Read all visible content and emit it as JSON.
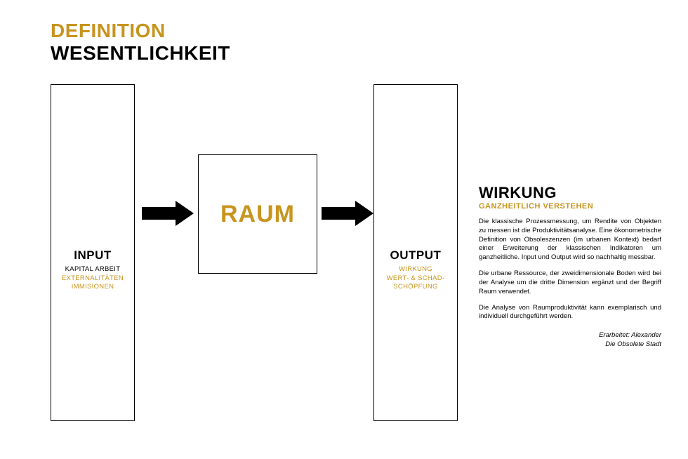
{
  "colors": {
    "gold": "#c7941e",
    "black": "#000000",
    "arrow": "#000000",
    "background": "#ffffff",
    "border": "#000000"
  },
  "header": {
    "line1": "DEFINITION",
    "line2": "WESENTLICHKEIT"
  },
  "diagram": {
    "input": {
      "title": "INPUT",
      "line_black": "KAPITAL ARBEIT",
      "line_gold1": "EXTERNALITÄTEN",
      "line_gold2": "IMMISIONEN"
    },
    "center": {
      "label": "RAUM"
    },
    "output": {
      "title": "OUTPUT",
      "line_gold1": "WIRKUNG",
      "line_gold2": "WERT- & SCHAD-",
      "line_gold3": "SCHÖPFUNG"
    },
    "box_sizes": {
      "tall_width": 120,
      "tall_height": 480,
      "center_width": 170,
      "center_height": 170
    }
  },
  "side": {
    "title": "WIRKUNG",
    "subtitle": "GANZHEITLICH VERSTEHEN",
    "p1": "Die klassische Prozessmessung, um Rendite von Objekten zu messen ist die Produktivitätsanalyse. Eine ökonometrische Definition von Obsoleszenzen (im urbanen Kontext) bedarf einer Erweiterung der klassischen Indikatoren um ganzheitliche. Input und Output wird so nachhaltig messbar.",
    "p2": "Die urbane Ressource, der zweidimensionale Boden wird bei der Analyse um die dritte Dimension ergänzt und der Begriff Raum verwendet.",
    "p3": "Die Analyse von Raumproduktivität kann exemplarisch und individuell durchgeführt werden.",
    "credit1": "Erarbeitet: Alexander",
    "credit2": "Die Obsolete Stadt"
  },
  "typography": {
    "header_fontsize": 28,
    "box_title_fontsize": 17,
    "box_line_fontsize": 9.5,
    "center_fontsize": 34,
    "side_title_fontsize": 22,
    "side_subtitle_fontsize": 11,
    "side_body_fontsize": 9.5
  }
}
